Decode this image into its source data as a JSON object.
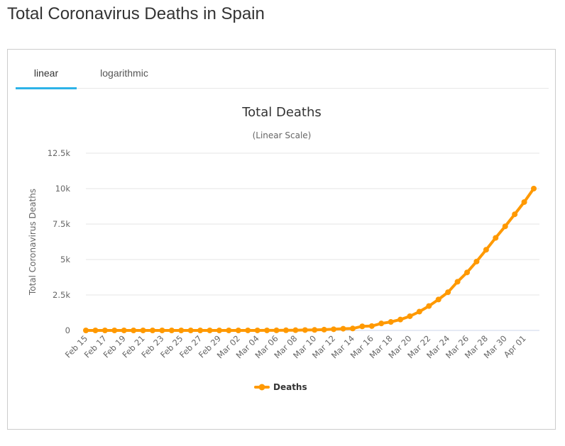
{
  "page": {
    "title": "Total Coronavirus Deaths in Spain"
  },
  "tabs": [
    {
      "label": "linear",
      "active": true
    },
    {
      "label": "logarithmic",
      "active": false
    }
  ],
  "colors": {
    "series": "#FF9900",
    "tab_active": "#2db3e8",
    "grid": "#e6e6e6"
  },
  "legend_icon": "line-with-marker-icon",
  "chart_data": {
    "type": "line",
    "title": "Total Deaths",
    "subtitle": "(Linear Scale)",
    "xlabel": "",
    "ylabel": "Total Coronavirus Deaths",
    "ylim": [
      0,
      12500
    ],
    "y_ticks": [
      0,
      2500,
      5000,
      7500,
      10000,
      12500
    ],
    "y_tick_labels": [
      "0",
      "2.5k",
      "5k",
      "7.5k",
      "10k",
      "12.5k"
    ],
    "grid": true,
    "legend": "bottom-center",
    "categories": [
      "Feb 15",
      "Feb 16",
      "Feb 17",
      "Feb 18",
      "Feb 19",
      "Feb 20",
      "Feb 21",
      "Feb 22",
      "Feb 23",
      "Feb 24",
      "Feb 25",
      "Feb 26",
      "Feb 27",
      "Feb 28",
      "Feb 29",
      "Mar 01",
      "Mar 02",
      "Mar 03",
      "Mar 04",
      "Mar 05",
      "Mar 06",
      "Mar 07",
      "Mar 08",
      "Mar 09",
      "Mar 10",
      "Mar 11",
      "Mar 12",
      "Mar 13",
      "Mar 14",
      "Mar 15",
      "Mar 16",
      "Mar 17",
      "Mar 18",
      "Mar 19",
      "Mar 20",
      "Mar 21",
      "Mar 22",
      "Mar 23",
      "Mar 24",
      "Mar 25",
      "Mar 26",
      "Mar 27",
      "Mar 28",
      "Mar 29",
      "Mar 30",
      "Mar 31",
      "Apr 01",
      "Apr 02"
    ],
    "x_tick_labels": [
      "Feb 15",
      "Feb 17",
      "Feb 19",
      "Feb 21",
      "Feb 23",
      "Feb 25",
      "Feb 27",
      "Feb 29",
      "Mar 02",
      "Mar 04",
      "Mar 06",
      "Mar 08",
      "Mar 10",
      "Mar 12",
      "Mar 14",
      "Mar 16",
      "Mar 18",
      "Mar 20",
      "Mar 22",
      "Mar 24",
      "Mar 26",
      "Mar 28",
      "Mar 30",
      "Apr 01"
    ],
    "series": [
      {
        "name": "Deaths",
        "values": [
          0,
          0,
          0,
          0,
          0,
          0,
          0,
          0,
          0,
          0,
          0,
          0,
          0,
          0,
          0,
          0,
          0,
          1,
          2,
          3,
          5,
          10,
          17,
          28,
          35,
          54,
          84,
          121,
          136,
          288,
          309,
          491,
          598,
          767,
          1002,
          1326,
          1720,
          2182,
          2696,
          3434,
          4089,
          4858,
          5690,
          6528,
          7340,
          8189,
          9053,
          10003
        ]
      }
    ]
  }
}
